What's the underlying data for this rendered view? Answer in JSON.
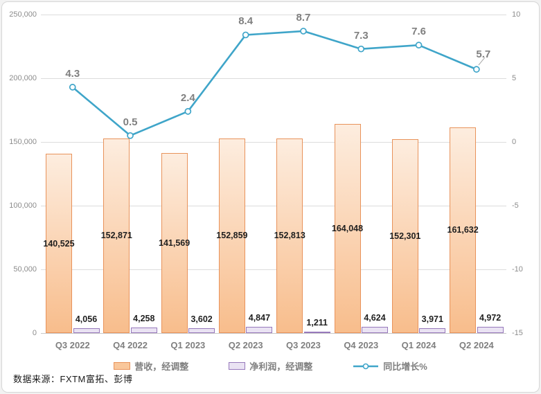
{
  "source_note": "数据来源：FXTM富拓、彭博",
  "chart_data": {
    "type": "combo-bar-line",
    "title": "",
    "categories": [
      "Q3 2022",
      "Q4 2022",
      "Q1 2023",
      "Q2 2023",
      "Q3 2023",
      "Q4 2023",
      "Q1 2024",
      "Q2 2024"
    ],
    "series": [
      {
        "name": "营收，经调整",
        "type": "bar",
        "axis": "left",
        "values": [
          140525,
          152871,
          141569,
          152859,
          152813,
          164048,
          152301,
          161632
        ],
        "labels": [
          "140,525",
          "152,871",
          "141,569",
          "152,859",
          "152,813",
          "164,048",
          "152,301",
          "161,632"
        ],
        "border_color": "#e8925a",
        "fill_top": "#fdeddf",
        "fill_bottom": "#f8bd8c"
      },
      {
        "name": "净利润，经调整",
        "type": "bar",
        "axis": "left",
        "values": [
          4056,
          4258,
          3602,
          4847,
          1211,
          4624,
          3971,
          4972
        ],
        "labels": [
          "4,056",
          "4,258",
          "3,602",
          "4,847",
          "1,211",
          "4,624",
          "3,971",
          "4,972"
        ],
        "border_color": "#9678bb",
        "fill": "#eae3f3"
      },
      {
        "name": "同比增长%",
        "type": "line",
        "axis": "right",
        "values": [
          4.3,
          0.5,
          2.4,
          8.4,
          8.7,
          7.3,
          7.6,
          5.7
        ],
        "labels": [
          "4.3",
          "0.5",
          "2.4",
          "8.4",
          "8.7",
          "7.3",
          "7.6",
          "5.7"
        ],
        "color": "#3fa5c9",
        "marker_fill": "#ffffff"
      }
    ],
    "left_axis": {
      "min": 0,
      "max": 250000,
      "tick_step": 50000,
      "tick_labels": [
        "250,000",
        "200,000",
        "150,000",
        "100,000",
        "50,000",
        "0"
      ]
    },
    "right_axis": {
      "min": -15,
      "max": 10,
      "tick_step": 5,
      "tick_labels": [
        "10",
        "5",
        "0",
        "-5",
        "-10",
        "-15"
      ]
    },
    "grid": "horizontal",
    "legend_position": "bottom"
  }
}
